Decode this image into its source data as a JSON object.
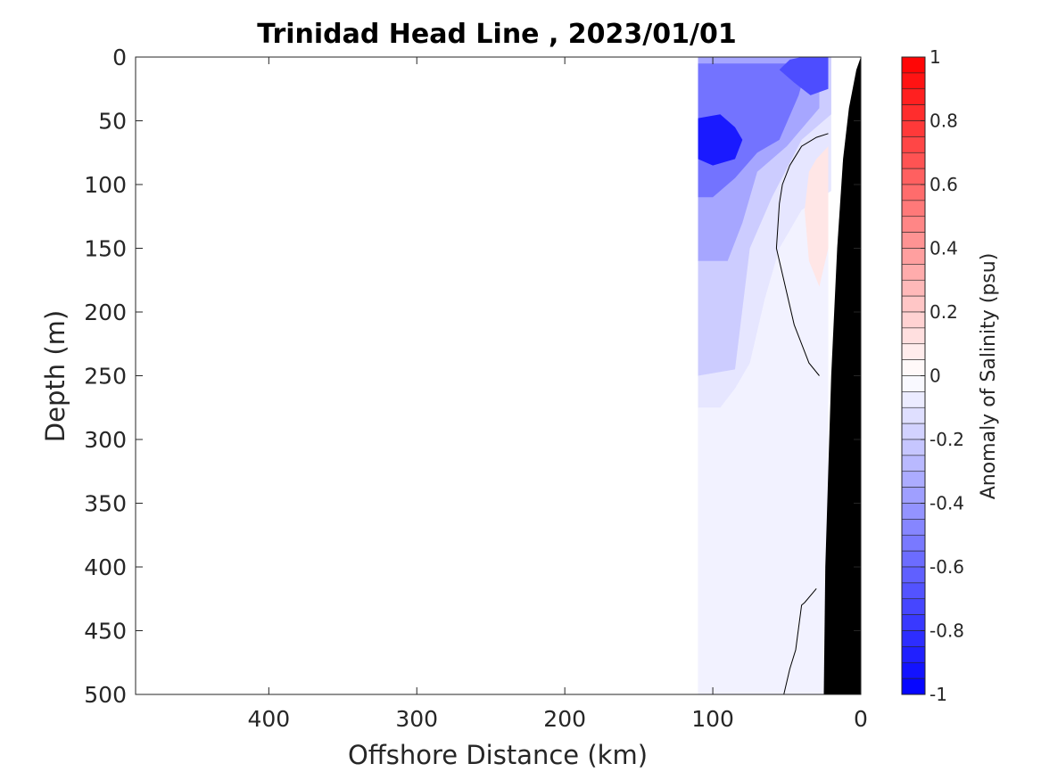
{
  "chart_data": {
    "type": "heatmap",
    "title": "Trinidad Head Line , 2023/01/01",
    "xlabel": "Offshore Distance (km)",
    "ylabel": "Depth (m)",
    "xlim": [
      490,
      0
    ],
    "ylim": [
      0,
      500
    ],
    "x_reversed": true,
    "y_reversed": true,
    "x_ticks": [
      400,
      300,
      200,
      100,
      0
    ],
    "y_ticks": [
      0,
      50,
      100,
      150,
      200,
      250,
      300,
      350,
      400,
      450,
      500
    ],
    "x_tick_labels": [
      "400",
      "300",
      "200",
      "100",
      "0"
    ],
    "y_tick_labels": [
      "0",
      "50",
      "100",
      "150",
      "200",
      "250",
      "300",
      "350",
      "400",
      "450",
      "500"
    ],
    "colorbar": {
      "label": "Anomaly of Salinity (psu)",
      "range": [
        -1,
        1
      ],
      "levels": 40,
      "ticks": [
        1,
        0.8,
        0.6,
        0.4,
        0.2,
        0,
        -0.2,
        -0.4,
        -0.6,
        -0.8,
        -1
      ],
      "tick_labels": [
        "1",
        "0.8",
        "0.6",
        "0.4",
        "0.2",
        "0",
        "-0.2",
        "-0.4",
        "-0.6",
        "-0.8",
        "-1"
      ],
      "colormap": "blue-white-red",
      "neg_color": "#0000ff",
      "pos_color": "#ff0000",
      "mid_color": "#ffffff"
    },
    "data_extent": {
      "x": [
        110,
        22
      ],
      "depth": [
        0,
        500
      ]
    },
    "zero_contours": [
      {
        "x": [
          22,
          30,
          40,
          48,
          53,
          55,
          57,
          52,
          45,
          35,
          28
        ],
        "depth": [
          60,
          63,
          70,
          85,
          100,
          115,
          150,
          175,
          210,
          240,
          250
        ]
      },
      {
        "x": [
          30,
          38,
          40,
          44,
          48,
          52
        ],
        "depth": [
          417,
          428,
          430,
          465,
          480,
          500
        ]
      }
    ],
    "bathymetry": {
      "color": "#000000",
      "x": [
        0,
        3,
        8,
        12,
        16,
        20,
        24,
        25,
        0
      ],
      "depth": [
        0,
        10,
        40,
        80,
        150,
        250,
        400,
        500,
        500
      ]
    },
    "anomaly_regions": [
      {
        "x": [
          110,
          20,
          20,
          40,
          55,
          65,
          75,
          85,
          95,
          110
        ],
        "depth": [
          0,
          0,
          105,
          120,
          150,
          190,
          240,
          260,
          275,
          275
        ],
        "value": -0.1
      },
      {
        "x": [
          110,
          20,
          20,
          40,
          60,
          75,
          85,
          110
        ],
        "depth": [
          0,
          0,
          45,
          65,
          110,
          150,
          245,
          250
        ],
        "value": -0.2
      },
      {
        "x": [
          110,
          28,
          28,
          50,
          70,
          80,
          90,
          110
        ],
        "depth": [
          0,
          0,
          40,
          70,
          90,
          130,
          160,
          160
        ],
        "value": -0.35
      },
      {
        "x": [
          110,
          36,
          42,
          55,
          70,
          85,
          100,
          110
        ],
        "depth": [
          5,
          5,
          30,
          65,
          75,
          95,
          110,
          110
        ],
        "value": -0.55
      },
      {
        "x": [
          40,
          22,
          22,
          34,
          45,
          55,
          48
        ],
        "depth": [
          0,
          0,
          25,
          30,
          20,
          10,
          2
        ],
        "value": -0.7
      },
      {
        "x": [
          110,
          95,
          85,
          80,
          85,
          100,
          110
        ],
        "depth": [
          48,
          45,
          55,
          65,
          80,
          85,
          80
        ],
        "value": -0.9
      },
      {
        "x": [
          30,
          22,
          22,
          28,
          35,
          38,
          35
        ],
        "depth": [
          80,
          70,
          150,
          180,
          160,
          120,
          90
        ],
        "value": 0.1
      }
    ]
  }
}
